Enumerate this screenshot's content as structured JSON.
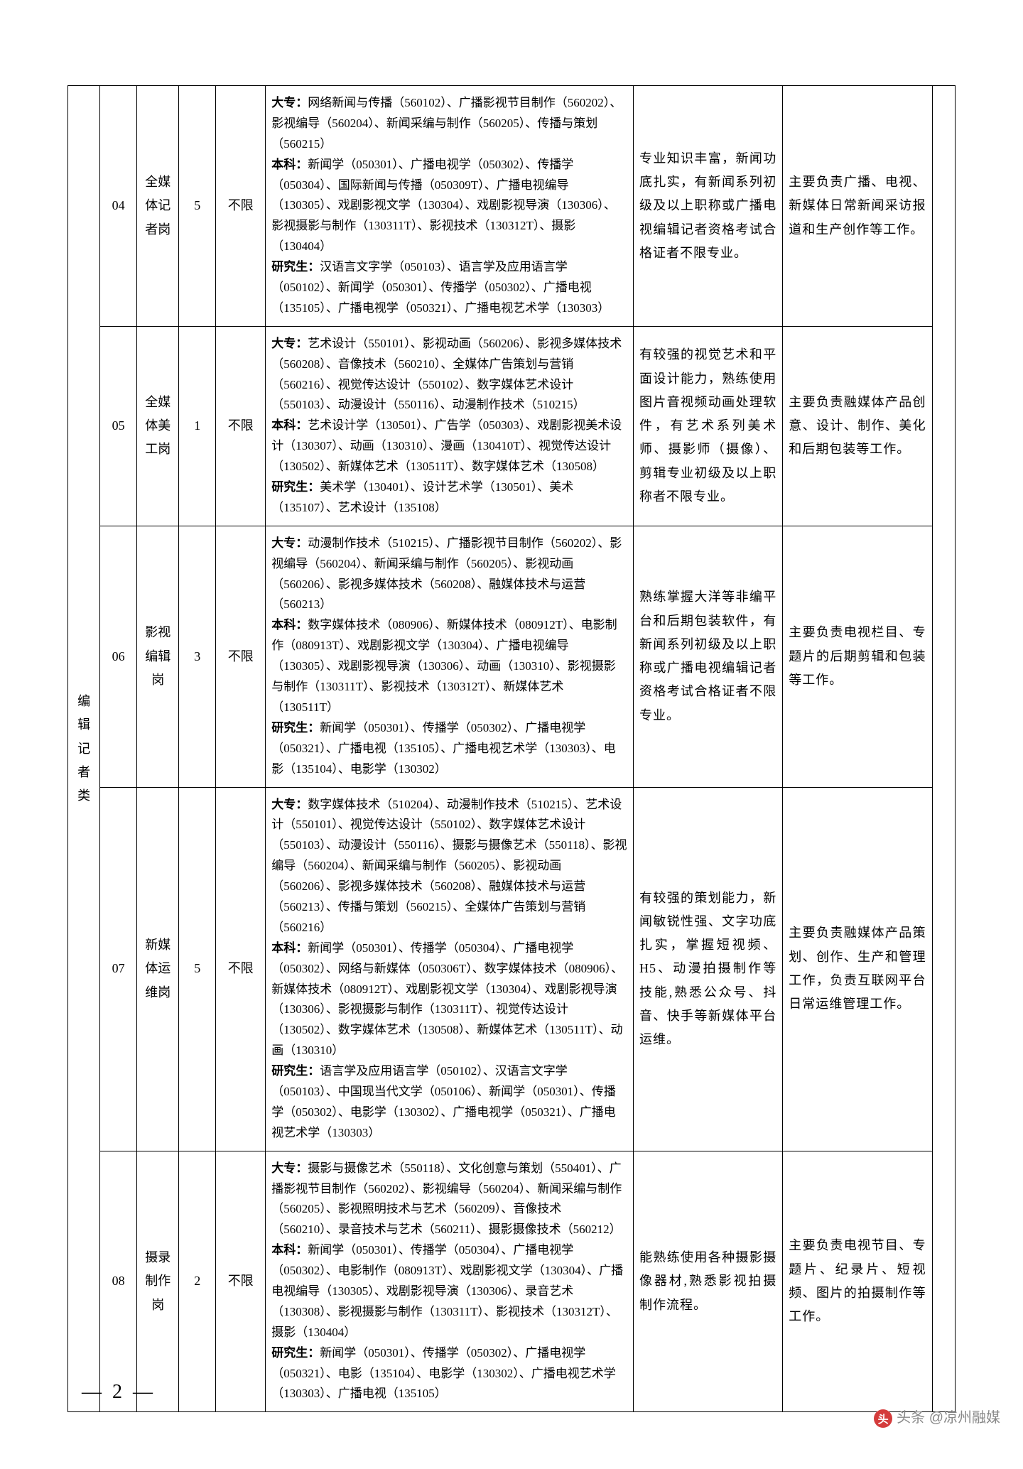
{
  "category": "编辑记者类",
  "rows": [
    {
      "code": "04",
      "post": "全媒体记者岗",
      "count": "5",
      "limit": "不限",
      "major_dz": "网络新闻与传播（560102）、广播影视节目制作（560202）、影视编导（560204）、新闻采编与制作（560205）、传播与策划（560215）",
      "major_bk": "新闻学（050301）、广播电视学（050302）、传播学（050304）、国际新闻与传播（050309T）、广播电视编导（130305）、戏剧影视文学（130304）、戏剧影视导演（130306）、影视摄影与制作（130311T）、影视技术（130312T）、摄影（130404）",
      "major_yjs": "汉语言文字学（050103）、语言学及应用语言学（050102）、新闻学（050301）、传播学（050302）、广播电视（135105）、广播电视学（050321）、广播电视艺术学（130303）",
      "req": "专业知识丰富，新闻功底扎实，有新闻系列初级及以上职称或广播电视编辑记者资格考试合格证者不限专业。",
      "duty": "主要负责广播、电视、新媒体日常新闻采访报道和生产创作等工作。"
    },
    {
      "code": "05",
      "post": "全媒体美工岗",
      "count": "1",
      "limit": "不限",
      "major_dz": "艺术设计（550101）、影视动画（560206）、影视多媒体技术（560208）、音像技术（560210）、全媒体广告策划与营销（560216）、视觉传达设计（550102）、数字媒体艺术设计（550103）、动漫设计（550116）、动漫制作技术（510215）",
      "major_bk": "艺术设计学（130501）、广告学（050303）、戏剧影视美术设计（130307）、动画（130310）、漫画（130410T）、视觉传达设计（130502）、新媒体艺术（130511T）、数字媒体艺术（130508）",
      "major_yjs": "美术学（130401）、设计艺术学（130501）、美术（135107）、艺术设计（135108）",
      "req": "有较强的视觉艺术和平面设计能力，熟练使用图片音视频动画处理软件，有艺术系列美术师、摄影师（摄像）、剪辑专业初级及以上职称者不限专业。",
      "duty": "主要负责融媒体产品创意、设计、制作、美化和后期包装等工作。"
    },
    {
      "code": "06",
      "post": "影视编辑岗",
      "count": "3",
      "limit": "不限",
      "major_dz": "动漫制作技术（510215）、广播影视节目制作（560202）、影视编导（560204）、新闻采编与制作（560205）、影视动画（560206）、影视多媒体技术（560208）、融媒体技术与运营（560213）",
      "major_bk": "数字媒体技术（080906）、新媒体技术（080912T）、电影制作（080913T）、戏剧影视文学（130304）、广播电视编导（130305）、戏剧影视导演（130306）、动画（130310）、影视摄影与制作（130311T）、影视技术（130312T）、新媒体艺术（130511T）",
      "major_yjs": "新闻学（050301）、传播学（050302）、广播电视学（050321）、广播电视（135105）、广播电视艺术学（130303）、电影（135104）、电影学（130302）",
      "req": "熟练掌握大洋等非编平台和后期包装软件，有新闻系列初级及以上职称或广播电视编辑记者资格考试合格证者不限专业。",
      "duty": "主要负责电视栏目、专题片的后期剪辑和包装等工作。"
    },
    {
      "code": "07",
      "post": "新媒体运维岗",
      "count": "5",
      "limit": "不限",
      "major_dz": "数字媒体技术（510204）、动漫制作技术（510215）、艺术设计（550101）、视觉传达设计（550102）、数字媒体艺术设计（550103）、动漫设计（550116）、摄影与摄像艺术（550118）、影视编导（560204）、新闻采编与制作（560205）、影视动画（560206）、影视多媒体技术（560208）、融媒体技术与运营（560213）、传播与策划（560215）、全媒体广告策划与营销（560216）",
      "major_bk": "新闻学（050301）、传播学（050304）、广播电视学（050302）、网络与新媒体（050306T）、数字媒体技术（080906）、新媒体技术（080912T）、戏剧影视文学（130304）、戏剧影视导演（130306）、影视摄影与制作（130311T）、视觉传达设计（130502）、数字媒体艺术（130508）、新媒体艺术（130511T）、动画（130310）",
      "major_yjs": "语言学及应用语言学（050102）、汉语言文字学（050103）、中国现当代文学（050106）、新闻学（050301）、传播学（050302）、电影学（130302）、广播电视学（050321）、广播电视艺术学（130303）",
      "req": "有较强的策划能力，新闻敏锐性强、文字功底扎实，掌握短视频、H5、动漫拍摄制作等技能,熟悉公众号、抖音、快手等新媒体平台运维。",
      "duty": "主要负责融媒体产品策划、创作、生产和管理工作，负责互联网平台日常运维管理工作。"
    },
    {
      "code": "08",
      "post": "摄录制作岗",
      "count": "2",
      "limit": "不限",
      "major_dz": "摄影与摄像艺术（550118）、文化创意与策划（550401）、广播影视节目制作（560202）、影视编导（560204）、新闻采编与制作（560205）、影视照明技术与艺术（560209）、音像技术（560210）、录音技术与艺术（560211）、摄影摄像技术（560212）",
      "major_bk": "新闻学（050301）、传播学（050304）、广播电视学（050302）、电影制作（080913T）、戏剧影视文学（130304）、广播电视编导（130305）、戏剧影视导演（130306）、录音艺术（130308）、影视摄影与制作（130311T）、影视技术（130312T）、摄影（130404）",
      "major_yjs": "新闻学（050301）、传播学（050302）、广播电视学（050321）、电影（135104）、电影学（130302）、广播电视艺术学（130303）、广播电视（135105）",
      "req": "能熟练使用各种摄影摄像器材,熟悉影视拍摄制作流程。",
      "duty": "主要负责电视节目、专题片、纪录片、短视频、图片的拍摄制作等工作。"
    }
  ],
  "labels": {
    "dz": "大专：",
    "bk": "本科：",
    "yjs": "研究生："
  },
  "pageNumber": "— 2 —",
  "watermark": {
    "prefix": "头条",
    "source": "@凉州融媒"
  }
}
